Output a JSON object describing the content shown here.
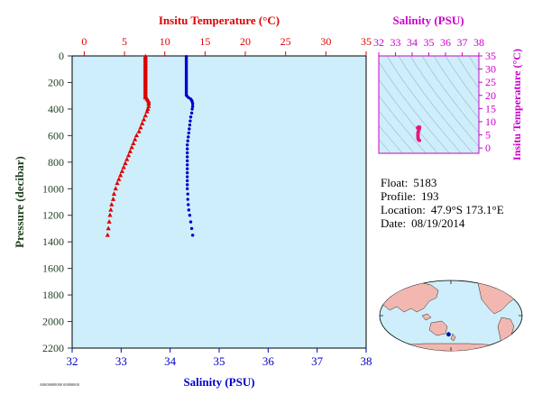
{
  "colors": {
    "temperature": "#dd0000",
    "salinity": "#0000cc",
    "ts_axis": "#cc00cc",
    "ts_points": "#e8177c",
    "plot_bg": "#cdeefa",
    "pressure_axis": "#1f3f1f",
    "land": "#f2b7b0",
    "ocean": "#cdeefa"
  },
  "float_info": {
    "float_label": "Float:",
    "float_value": "5183",
    "profile_label": "Profile:",
    "profile_value": "193",
    "location_label": "Location:",
    "location_value": "47.9°S  173.1°E",
    "date_label": "Date:",
    "date_value": "08/19/2014"
  },
  "footer_code": "A0000000000 00000000",
  "chart_data": [
    {
      "name": "profile",
      "type": "scatter",
      "top_axis_label": "Insitu Temperature (°C)",
      "bottom_axis_label": "Salinity (PSU)",
      "left_axis_label": "Pressure (decibar)",
      "temperature_ticks": [
        "0",
        "5",
        "10",
        "15",
        "20",
        "25",
        "30",
        "35"
      ],
      "temperature_range": [
        -1.5,
        35
      ],
      "salinity_ticks": [
        "32",
        "33",
        "34",
        "35",
        "36",
        "37",
        "38"
      ],
      "salinity_range": [
        32,
        38
      ],
      "pressure_ticks": [
        "0",
        "200",
        "400",
        "600",
        "800",
        "1000",
        "1200",
        "1400",
        "1600",
        "1800",
        "2000",
        "2200"
      ],
      "pressure_range": [
        0,
        2200
      ],
      "grid": false,
      "series": [
        {
          "quantity": "temperature",
          "marker": "triangle",
          "points": [
            [
              7.6,
              5
            ],
            [
              7.6,
              15
            ],
            [
              7.6,
              25
            ],
            [
              7.6,
              35
            ],
            [
              7.6,
              45
            ],
            [
              7.6,
              55
            ],
            [
              7.6,
              65
            ],
            [
              7.6,
              75
            ],
            [
              7.6,
              85
            ],
            [
              7.6,
              95
            ],
            [
              7.6,
              105
            ],
            [
              7.6,
              115
            ],
            [
              7.6,
              125
            ],
            [
              7.6,
              135
            ],
            [
              7.6,
              145
            ],
            [
              7.6,
              155
            ],
            [
              7.6,
              165
            ],
            [
              7.6,
              175
            ],
            [
              7.6,
              185
            ],
            [
              7.6,
              195
            ],
            [
              7.6,
              205
            ],
            [
              7.6,
              215
            ],
            [
              7.6,
              225
            ],
            [
              7.6,
              235
            ],
            [
              7.6,
              245
            ],
            [
              7.6,
              255
            ],
            [
              7.6,
              265
            ],
            [
              7.6,
              275
            ],
            [
              7.6,
              285
            ],
            [
              7.6,
              295
            ],
            [
              7.6,
              305
            ],
            [
              7.6,
              315
            ],
            [
              7.8,
              325
            ],
            [
              7.9,
              335
            ],
            [
              8.0,
              345
            ],
            [
              8.0,
              360
            ],
            [
              8.0,
              380
            ],
            [
              7.9,
              400
            ],
            [
              7.8,
              420
            ],
            [
              7.6,
              450
            ],
            [
              7.4,
              480
            ],
            [
              7.2,
              510
            ],
            [
              7.0,
              540
            ],
            [
              6.8,
              570
            ],
            [
              6.5,
              600
            ],
            [
              6.3,
              630
            ],
            [
              6.1,
              660
            ],
            [
              5.9,
              690
            ],
            [
              5.7,
              720
            ],
            [
              5.5,
              750
            ],
            [
              5.3,
              780
            ],
            [
              5.1,
              810
            ],
            [
              4.9,
              840
            ],
            [
              4.7,
              870
            ],
            [
              4.5,
              900
            ],
            [
              4.3,
              930
            ],
            [
              4.1,
              960
            ],
            [
              3.9,
              1000
            ],
            [
              3.7,
              1040
            ],
            [
              3.6,
              1080
            ],
            [
              3.4,
              1120
            ],
            [
              3.3,
              1160
            ],
            [
              3.2,
              1200
            ],
            [
              3.1,
              1250
            ],
            [
              3.0,
              1300
            ],
            [
              2.9,
              1350
            ]
          ]
        },
        {
          "quantity": "salinity",
          "marker": "circle",
          "points": [
            [
              34.33,
              5
            ],
            [
              34.33,
              15
            ],
            [
              34.33,
              25
            ],
            [
              34.33,
              35
            ],
            [
              34.33,
              45
            ],
            [
              34.33,
              55
            ],
            [
              34.33,
              65
            ],
            [
              34.33,
              75
            ],
            [
              34.33,
              85
            ],
            [
              34.33,
              95
            ],
            [
              34.33,
              105
            ],
            [
              34.33,
              115
            ],
            [
              34.33,
              125
            ],
            [
              34.33,
              135
            ],
            [
              34.33,
              145
            ],
            [
              34.33,
              155
            ],
            [
              34.33,
              165
            ],
            [
              34.33,
              175
            ],
            [
              34.33,
              185
            ],
            [
              34.33,
              195
            ],
            [
              34.33,
              205
            ],
            [
              34.33,
              215
            ],
            [
              34.33,
              225
            ],
            [
              34.33,
              235
            ],
            [
              34.33,
              245
            ],
            [
              34.33,
              255
            ],
            [
              34.33,
              265
            ],
            [
              34.33,
              275
            ],
            [
              34.33,
              285
            ],
            [
              34.33,
              295
            ],
            [
              34.35,
              305
            ],
            [
              34.38,
              315
            ],
            [
              34.42,
              325
            ],
            [
              34.44,
              335
            ],
            [
              34.45,
              345
            ],
            [
              34.46,
              360
            ],
            [
              34.46,
              380
            ],
            [
              34.45,
              400
            ],
            [
              34.44,
              430
            ],
            [
              34.42,
              460
            ],
            [
              34.41,
              490
            ],
            [
              34.4,
              520
            ],
            [
              34.39,
              550
            ],
            [
              34.38,
              580
            ],
            [
              34.37,
              610
            ],
            [
              34.36,
              640
            ],
            [
              34.35,
              670
            ],
            [
              34.35,
              700
            ],
            [
              34.35,
              730
            ],
            [
              34.35,
              760
            ],
            [
              34.35,
              790
            ],
            [
              34.35,
              820
            ],
            [
              34.35,
              850
            ],
            [
              34.35,
              880
            ],
            [
              34.35,
              910
            ],
            [
              34.35,
              940
            ],
            [
              34.35,
              970
            ],
            [
              34.35,
              1000
            ],
            [
              34.36,
              1040
            ],
            [
              34.36,
              1080
            ],
            [
              34.37,
              1120
            ],
            [
              34.38,
              1160
            ],
            [
              34.4,
              1200
            ],
            [
              34.42,
              1250
            ],
            [
              34.44,
              1300
            ],
            [
              34.46,
              1350
            ]
          ]
        }
      ]
    },
    {
      "name": "ts_diagram",
      "type": "scatter",
      "title": "Salinity (PSU)",
      "right_axis_label": "Insitu Temperature (°C)",
      "x_ticks": [
        "32",
        "33",
        "34",
        "35",
        "36",
        "37",
        "38"
      ],
      "x_range": [
        32,
        38
      ],
      "y_ticks": [
        "35",
        "30",
        "25",
        "20",
        "15",
        "10",
        "5",
        "0"
      ],
      "y_range": [
        -2,
        35
      ],
      "points": [
        [
          34.33,
          7.6
        ],
        [
          34.33,
          7.7
        ],
        [
          34.4,
          8.0
        ],
        [
          34.45,
          7.9
        ],
        [
          34.44,
          7.6
        ],
        [
          34.42,
          7.2
        ],
        [
          34.4,
          6.8
        ],
        [
          34.38,
          6.4
        ],
        [
          34.36,
          6.0
        ],
        [
          34.35,
          5.6
        ],
        [
          34.35,
          5.2
        ],
        [
          34.35,
          4.8
        ],
        [
          34.35,
          4.4
        ],
        [
          34.35,
          4.0
        ],
        [
          34.36,
          3.6
        ],
        [
          34.37,
          3.3
        ],
        [
          34.4,
          3.1
        ],
        [
          34.44,
          2.9
        ]
      ]
    },
    {
      "name": "location_map",
      "type": "map",
      "marker": {
        "lat": -47.9,
        "lon": 173.1
      }
    }
  ]
}
